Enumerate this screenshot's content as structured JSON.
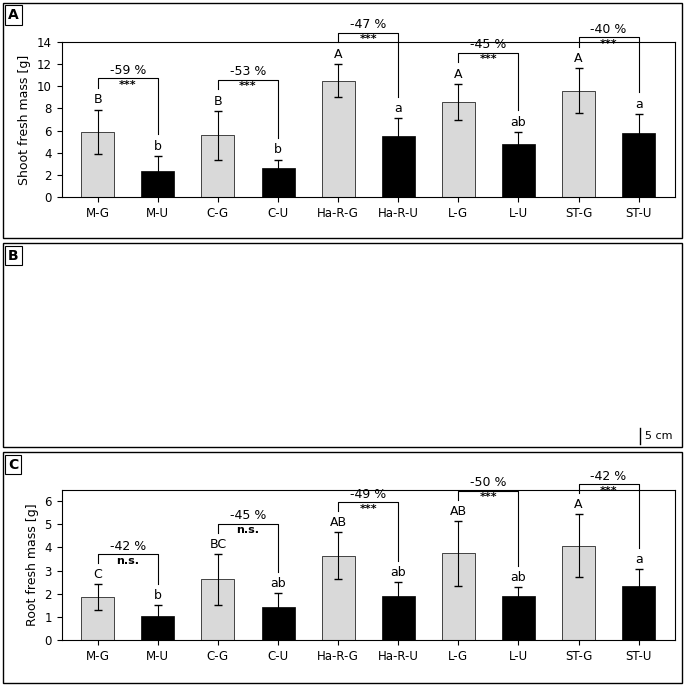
{
  "chart_data": [
    {
      "type": "bar",
      "title": "A",
      "y_label": "Shoot fresh mass [g]",
      "categories": [
        "M-G",
        "M-U",
        "C-G",
        "C-U",
        "Ha-R-G",
        "Ha-R-U",
        "L-G",
        "L-U",
        "ST-G",
        "ST-U"
      ],
      "values": [
        5.9,
        2.4,
        5.6,
        2.6,
        10.5,
        5.5,
        8.6,
        4.8,
        9.6,
        5.8
      ],
      "errors": [
        2.0,
        1.3,
        2.2,
        0.8,
        1.5,
        1.6,
        1.6,
        1.1,
        2.0,
        1.7
      ],
      "letters": [
        "B",
        "b",
        "B",
        "b",
        "A",
        "a",
        "A",
        "ab",
        "A",
        "a"
      ],
      "colors": [
        "#d9d9d9",
        "#000000",
        "#d9d9d9",
        "#000000",
        "#d9d9d9",
        "#000000",
        "#d9d9d9",
        "#000000",
        "#d9d9d9",
        "#000000"
      ],
      "comparisons": [
        {
          "between": [
            "M-G",
            "M-U"
          ],
          "change": "-59 %",
          "significance": "***"
        },
        {
          "between": [
            "C-G",
            "C-U"
          ],
          "change": "-53 %",
          "significance": "***"
        },
        {
          "between": [
            "Ha-R-G",
            "Ha-R-U"
          ],
          "change": "-47 %",
          "significance": "***"
        },
        {
          "between": [
            "L-G",
            "L-U"
          ],
          "change": "-45 %",
          "significance": "***"
        },
        {
          "between": [
            "ST-G",
            "ST-U"
          ],
          "change": "-40 %",
          "significance": "***"
        }
      ],
      "ylim": [
        0,
        14
      ],
      "yticks": [
        0,
        2,
        4,
        6,
        8,
        10,
        12,
        14
      ],
      "grid": false
    },
    {
      "type": "bar",
      "title": "C",
      "y_label": "Root fresh mass [g]",
      "categories": [
        "M-G",
        "M-U",
        "C-G",
        "C-U",
        "Ha-R-G",
        "Ha-R-U",
        "L-G",
        "L-U",
        "ST-G",
        "ST-U"
      ],
      "values": [
        1.85,
        1.05,
        2.62,
        1.42,
        3.65,
        1.9,
        3.75,
        1.9,
        4.08,
        2.35
      ],
      "errors": [
        0.55,
        0.45,
        1.1,
        0.6,
        1.0,
        0.6,
        1.4,
        0.4,
        1.35,
        0.7
      ],
      "letters": [
        "C",
        "b",
        "BC",
        "ab",
        "AB",
        "ab",
        "AB",
        "ab",
        "A",
        "a"
      ],
      "colors": [
        "#d9d9d9",
        "#000000",
        "#d9d9d9",
        "#000000",
        "#d9d9d9",
        "#000000",
        "#d9d9d9",
        "#000000",
        "#d9d9d9",
        "#000000"
      ],
      "comparisons": [
        {
          "between": [
            "M-G",
            "M-U"
          ],
          "change": "-42 %",
          "significance": "n.s."
        },
        {
          "between": [
            "C-G",
            "C-U"
          ],
          "change": "-45 %",
          "significance": "n.s."
        },
        {
          "between": [
            "Ha-R-G",
            "Ha-R-U"
          ],
          "change": "-49 %",
          "significance": "***"
        },
        {
          "between": [
            "L-G",
            "L-U"
          ],
          "change": "-50 %",
          "significance": "***"
        },
        {
          "between": [
            "ST-G",
            "ST-U"
          ],
          "change": "-42 %",
          "significance": "***"
        }
      ],
      "ylim": [
        0,
        6.5
      ],
      "yticks": [
        0,
        1,
        2,
        3,
        4,
        5,
        6
      ],
      "grid": false
    }
  ],
  "photo_panel": {
    "title": "B",
    "scale_bar": "5 cm"
  }
}
